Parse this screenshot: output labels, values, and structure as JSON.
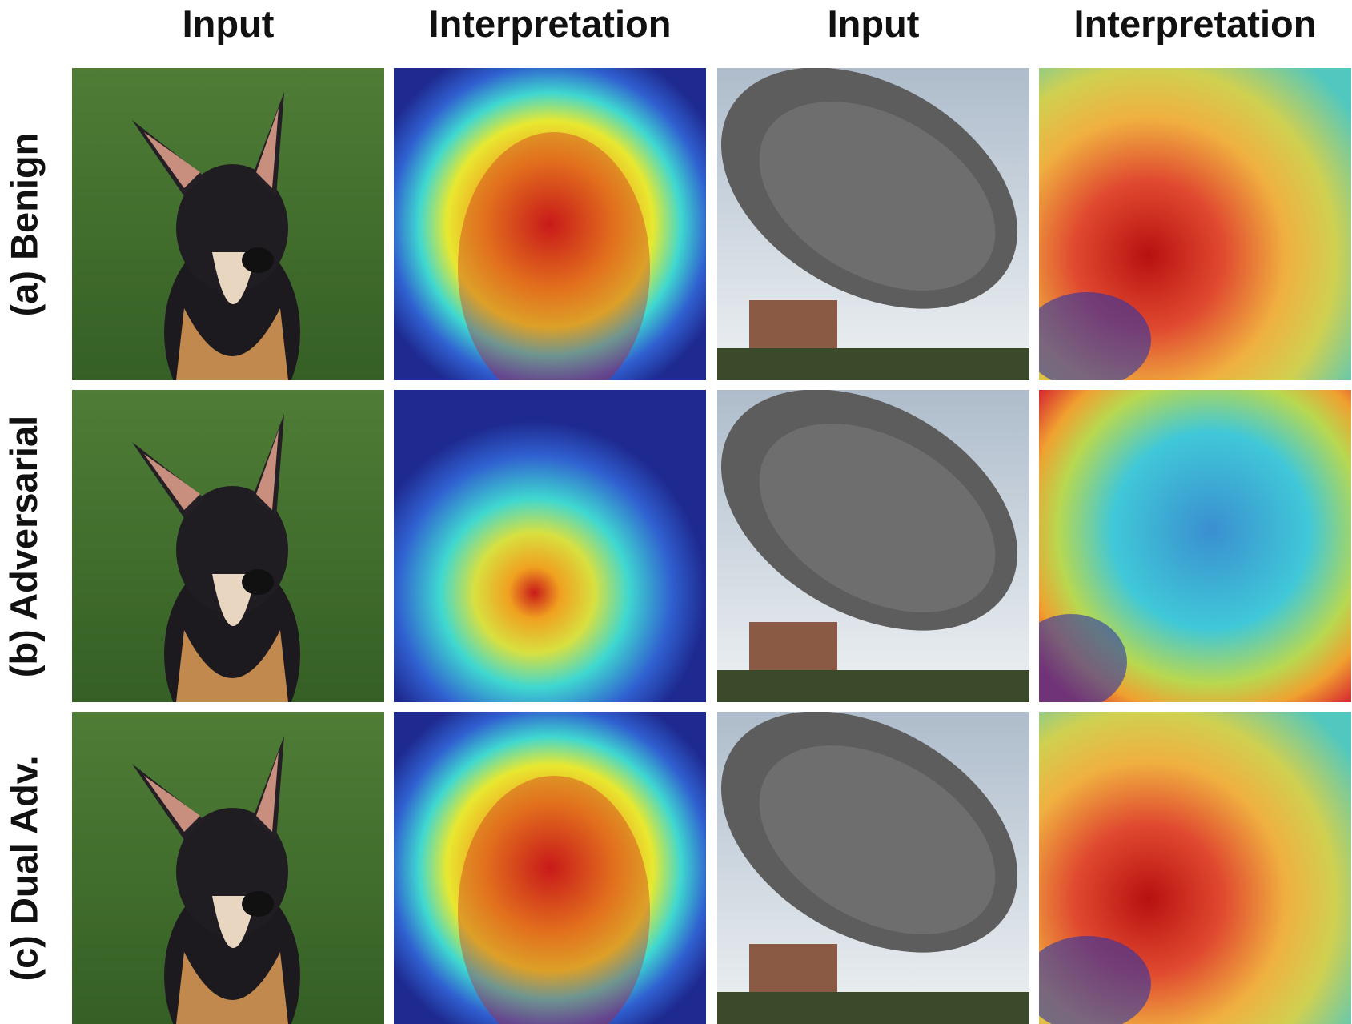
{
  "figure": {
    "column_headers": [
      "Input",
      "Interpretation",
      "Input",
      "Interpretation"
    ],
    "row_labels": [
      "(a) Benign",
      "(b) Adversarial",
      "(c) Dual Adv."
    ],
    "panels": {
      "input_left": "dog photo",
      "input_right": "radio telescope dish photo",
      "heatmaps": {
        "dog_benign": "focus on dog face",
        "dog_adversarial": "weak, shifted focus",
        "dog_dual": "focus on dog face",
        "dish_benign": "focus on dish",
        "dish_adversarial": "focus shifted to background",
        "dish_dual": "focus on dish"
      }
    },
    "colors": {
      "grass": "#3f6b2c",
      "sky": "#c9d3dc",
      "heat_hot": "#d7191c",
      "heat_cold": "#2b35a6"
    }
  }
}
